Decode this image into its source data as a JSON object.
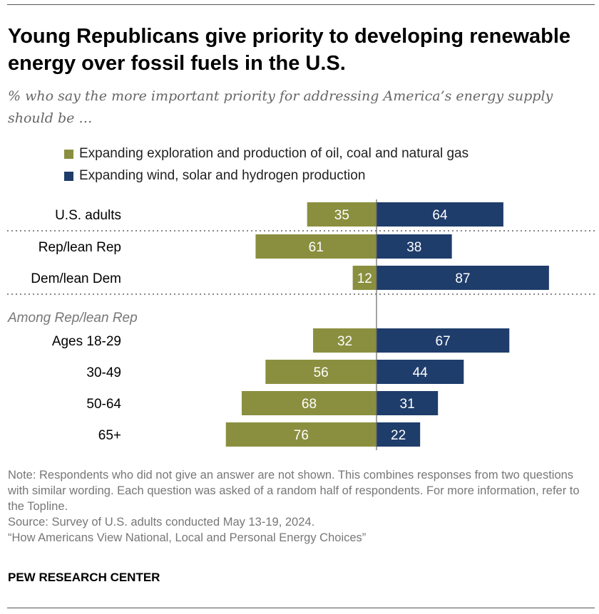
{
  "title": "Young Republicans give priority to developing renewable energy over fossil fuels in the U.S.",
  "subtitle": "% who say the more important priority for addressing America’s energy supply should be …",
  "colors": {
    "fossil": "#8a8f3f",
    "renewable": "#1f3d6b"
  },
  "chart_data": {
    "type": "bar",
    "orientation": "horizontal-diverging",
    "categories": [
      "U.S. adults",
      "Rep/lean Rep",
      "Dem/lean Dem",
      "Ages 18-29",
      "30-49",
      "50-64",
      "65+"
    ],
    "group_label": "Among Rep/lean Rep",
    "series": [
      {
        "name": "Expanding exploration and production of oil, coal and natural gas",
        "values": [
          35,
          61,
          12,
          32,
          56,
          68,
          76
        ]
      },
      {
        "name": "Expanding wind, solar and hydrogen production",
        "values": [
          64,
          38,
          87,
          67,
          44,
          31,
          22
        ]
      }
    ],
    "legend_position": "top",
    "grid": false
  },
  "notes": [
    "Note: Respondents who did not give an answer are not shown. This combines responses from two questions with similar wording. Each question was asked of a random half of respondents. For more information, refer to the Topline.",
    "Source: Survey of U.S. adults conducted May 13-19, 2024.",
    "“How Americans View National, Local and Personal Energy Choices”"
  ],
  "brand": "PEW RESEARCH CENTER"
}
